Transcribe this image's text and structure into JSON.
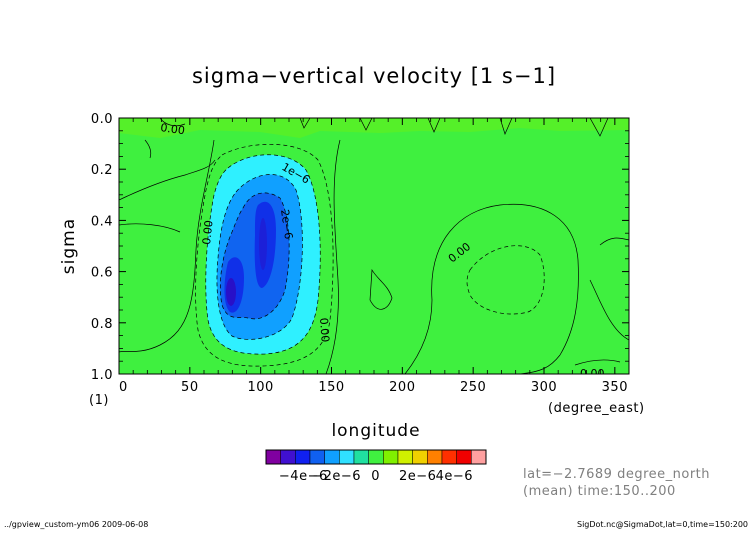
{
  "chart_data": {
    "type": "contour",
    "title": "sigma−vertical velocity [1 s−1]",
    "xlabel": "longitude",
    "ylabel": "sigma",
    "x_unit": "(degree_east)",
    "y_unit": "(1)",
    "xlim": [
      0,
      360
    ],
    "ylim": [
      1.0,
      0.0
    ],
    "x_ticks": [
      "0",
      "50",
      "100",
      "150",
      "200",
      "250",
      "300",
      "350"
    ],
    "y_ticks": [
      "0.0",
      "0.2",
      "0.4",
      "0.6",
      "0.8",
      "1.0"
    ],
    "contour_labels": [
      "0.00",
      "1e−6",
      "2e−6",
      "0.00",
      "0.00",
      "0.00",
      "0.00",
      "0.00"
    ],
    "colorbar": {
      "labels": [
        "−4e−6",
        "−2e−6",
        "0",
        "2e−6",
        "4e−6"
      ],
      "colors": [
        "#8000a0",
        "#4010d0",
        "#1020f0",
        "#1060f0",
        "#10a0ff",
        "#30e0ff",
        "#20e0a0",
        "#40f040",
        "#80f000",
        "#d0f000",
        "#f0d000",
        "#ff8000",
        "#ff3000",
        "#f00000",
        "#ffa0a0"
      ]
    },
    "regions": [
      {
        "level": "3e-6 .. 4e-6",
        "lon": [
          75,
          78
        ],
        "sigma": [
          0.6,
          0.7
        ]
      },
      {
        "level": "2e-6 .. 3e-6",
        "lon": [
          70,
          110
        ],
        "sigma": [
          0.35,
          0.8
        ]
      },
      {
        "level": "1e-6 .. 2e-6",
        "lon": [
          65,
          130
        ],
        "sigma": [
          0.2,
          0.88
        ]
      },
      {
        "level": "0 .. 1e-6",
        "lon": [
          60,
          140
        ],
        "sigma": [
          0.1,
          0.95
        ]
      }
    ],
    "annotations": {
      "lat": "lat=−2.7689 degree_north",
      "time": "(mean) time:150..200"
    }
  },
  "footer": {
    "left": "../gpview_custom-ym06  2009-06-08",
    "right": "SigDot.nc@SigmaDot,lat=0,time=150:200"
  }
}
